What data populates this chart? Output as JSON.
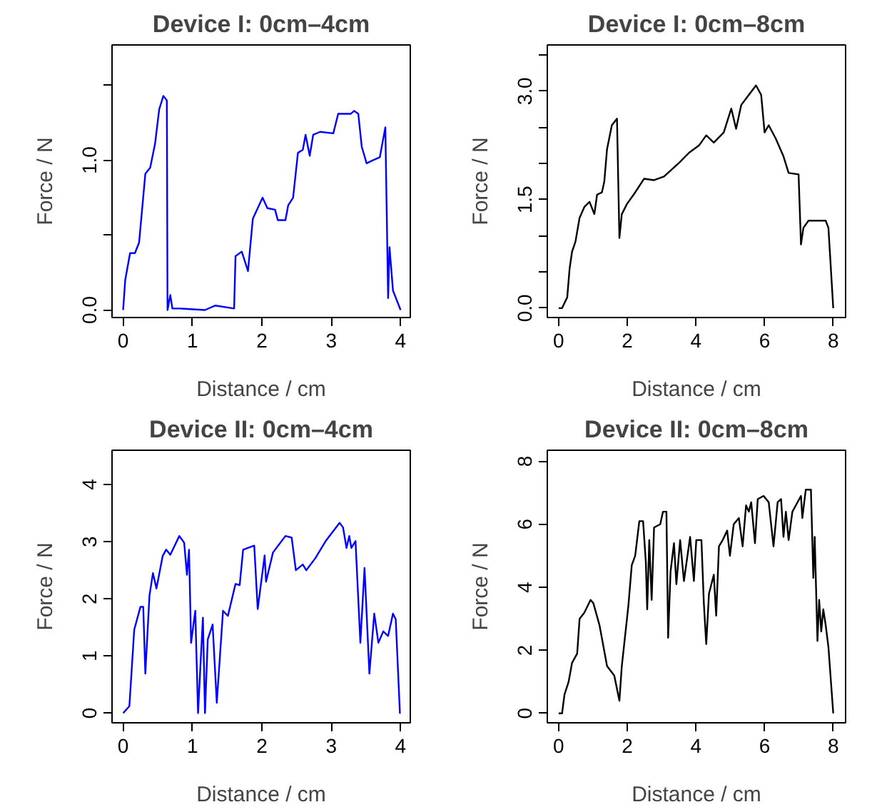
{
  "chart_data": [
    {
      "type": "line",
      "title": "Device I: 0cm–4cm",
      "xlabel": "Distance / cm",
      "ylabel": "Force / N",
      "grid": false,
      "xlim": [
        -0.16,
        4.14
      ],
      "ylim": [
        -0.05,
        1.77
      ],
      "xticks": [
        0,
        1,
        2,
        3,
        4
      ],
      "yticks": [
        {
          "value": 0,
          "label": "0.0"
        },
        {
          "value": 0.5,
          "label": null
        },
        {
          "value": 1,
          "label": "1.0"
        },
        {
          "value": 1.5,
          "label": null
        }
      ],
      "series": [
        {
          "color": "#0000ff",
          "x": [
            0,
            0.03,
            0.1,
            0.17,
            0.23,
            0.32,
            0.39,
            0.46,
            0.52,
            0.58,
            0.63,
            0.64,
            0.68,
            0.71,
            0.82,
            1.18,
            1.33,
            1.6,
            1.62,
            1.71,
            1.8,
            1.87,
            2.01,
            2.08,
            2.19,
            2.23,
            2.34,
            2.38,
            2.45,
            2.52,
            2.59,
            2.63,
            2.69,
            2.74,
            2.84,
            3.03,
            3.1,
            3.28,
            3.33,
            3.39,
            3.44,
            3.51,
            3.6,
            3.7,
            3.78,
            3.82,
            3.84,
            3.89,
            4.0
          ],
          "values": [
            0,
            0.2,
            0.38,
            0.38,
            0.45,
            0.91,
            0.95,
            1.11,
            1.34,
            1.43,
            1.4,
            0,
            0.1,
            0.01,
            0.01,
            0,
            0.03,
            0.01,
            0.36,
            0.39,
            0.26,
            0.61,
            0.75,
            0.68,
            0.67,
            0.6,
            0.6,
            0.7,
            0.75,
            1.05,
            1.07,
            1.17,
            1.03,
            1.17,
            1.19,
            1.18,
            1.31,
            1.31,
            1.33,
            1.31,
            1.09,
            0.98,
            1.0,
            1.02,
            1.22,
            0.08,
            0.42,
            0.13,
            0
          ]
        }
      ]
    },
    {
      "type": "line",
      "title": "Device I: 0cm–8cm",
      "xlabel": "Distance / cm",
      "ylabel": "Force / N",
      "grid": false,
      "xlim": [
        -0.33,
        8.36
      ],
      "ylim": [
        -0.13,
        3.64
      ],
      "xticks": [
        0,
        2,
        4,
        6,
        8
      ],
      "yticks": [
        {
          "value": 0,
          "label": "0.0"
        },
        {
          "value": 0.5,
          "label": null
        },
        {
          "value": 1,
          "label": null
        },
        {
          "value": 1.5,
          "label": "1.5"
        },
        {
          "value": 2,
          "label": null
        },
        {
          "value": 2.5,
          "label": null
        },
        {
          "value": 3,
          "label": "3.0"
        },
        {
          "value": 3.5,
          "label": null
        }
      ],
      "series": [
        {
          "color": "#000000",
          "x": [
            0,
            0.1,
            0.25,
            0.32,
            0.39,
            0.49,
            0.61,
            0.75,
            0.9,
            1.04,
            1.12,
            1.26,
            1.33,
            1.41,
            1.55,
            1.7,
            1.77,
            1.84,
            1.99,
            2.2,
            2.49,
            2.78,
            3.07,
            3.51,
            3.8,
            4.09,
            4.3,
            4.52,
            4.81,
            5.03,
            5.17,
            5.32,
            5.54,
            5.75,
            5.9,
            6.0,
            6.12,
            6.33,
            6.55,
            6.7,
            6.99,
            7.06,
            7.13,
            7.28,
            7.49,
            7.78,
            7.86,
            8.0
          ],
          "values": [
            0,
            0,
            0.15,
            0.55,
            0.78,
            0.92,
            1.25,
            1.4,
            1.47,
            1.3,
            1.57,
            1.6,
            1.75,
            2.2,
            2.53,
            2.62,
            0.97,
            1.3,
            1.44,
            1.58,
            1.79,
            1.77,
            1.82,
            2.01,
            2.15,
            2.25,
            2.39,
            2.29,
            2.43,
            2.76,
            2.48,
            2.81,
            2.95,
            3.08,
            2.95,
            2.43,
            2.53,
            2.34,
            2.1,
            1.87,
            1.85,
            0.88,
            1.11,
            1.21,
            1.21,
            1.21,
            1.11,
            0
          ]
        }
      ]
    },
    {
      "type": "line",
      "title": "Device II: 0cm–4cm",
      "xlabel": "Distance / cm",
      "ylabel": "Force / N",
      "grid": false,
      "xlim": [
        -0.16,
        4.14
      ],
      "ylim": [
        -0.17,
        4.6
      ],
      "xticks": [
        0,
        1,
        2,
        3,
        4
      ],
      "yticks": [
        0,
        1,
        2,
        3,
        4
      ],
      "series": [
        {
          "color": "#0000ff",
          "x": [
            0,
            0.09,
            0.16,
            0.25,
            0.29,
            0.32,
            0.38,
            0.43,
            0.48,
            0.57,
            0.62,
            0.68,
            0.81,
            0.88,
            0.92,
            0.95,
            0.98,
            1.04,
            1.08,
            1.15,
            1.18,
            1.22,
            1.29,
            1.35,
            1.44,
            1.51,
            1.62,
            1.68,
            1.73,
            1.89,
            1.94,
            2.04,
            2.06,
            2.16,
            2.34,
            2.43,
            2.49,
            2.59,
            2.64,
            2.77,
            2.92,
            3.12,
            3.17,
            3.22,
            3.26,
            3.29,
            3.35,
            3.42,
            3.48,
            3.55,
            3.62,
            3.68,
            3.75,
            3.82,
            3.89,
            3.93,
            3.99,
            4.0
          ],
          "values": [
            0,
            0.12,
            1.46,
            1.86,
            1.86,
            0.69,
            2.06,
            2.45,
            2.18,
            2.75,
            2.86,
            2.77,
            3.1,
            2.98,
            2.42,
            2.86,
            1.23,
            1.79,
            0,
            1.67,
            0,
            1.29,
            1.55,
            0.18,
            1.79,
            1.7,
            2.26,
            2.24,
            2.86,
            2.93,
            1.82,
            2.76,
            2.3,
            2.81,
            3.1,
            3.07,
            2.5,
            2.6,
            2.5,
            2.71,
            3.01,
            3.33,
            3.25,
            2.89,
            3.1,
            2.89,
            3.01,
            1.23,
            2.54,
            0.69,
            1.74,
            1.23,
            1.43,
            1.35,
            1.74,
            1.64,
            0,
            0
          ]
        }
      ]
    },
    {
      "type": "line",
      "title": "Device II: 0cm–8cm",
      "xlabel": "Distance / cm",
      "ylabel": "Force / N",
      "grid": false,
      "xlim": [
        -0.33,
        8.36
      ],
      "ylim": [
        -0.3,
        8.35
      ],
      "xticks": [
        0,
        2,
        4,
        6,
        8
      ],
      "yticks": [
        0,
        2,
        4,
        6,
        8
      ],
      "series": [
        {
          "color": "#000000",
          "x": [
            0,
            0.1,
            0.17,
            0.29,
            0.39,
            0.54,
            0.61,
            0.75,
            0.93,
            1.01,
            1.19,
            1.41,
            1.62,
            1.77,
            1.84,
            2.03,
            2.13,
            2.23,
            2.35,
            2.46,
            2.54,
            2.58,
            2.64,
            2.71,
            2.78,
            2.96,
            3.04,
            3.14,
            3.19,
            3.26,
            3.36,
            3.43,
            3.54,
            3.65,
            3.83,
            3.94,
            4.01,
            4.16,
            4.23,
            4.3,
            4.38,
            4.52,
            4.59,
            4.67,
            4.78,
            4.91,
            4.99,
            5.1,
            5.25,
            5.36,
            5.46,
            5.54,
            5.61,
            5.72,
            5.8,
            5.97,
            6.12,
            6.26,
            6.38,
            6.48,
            6.55,
            6.62,
            6.7,
            6.81,
            7.06,
            7.1,
            7.2,
            7.35,
            7.42,
            7.46,
            7.54,
            7.59,
            7.65,
            7.71,
            7.78,
            7.86,
            8.0
          ],
          "values": [
            0,
            0,
            0.6,
            1.0,
            1.6,
            1.9,
            3.0,
            3.2,
            3.6,
            3.5,
            2.8,
            1.5,
            1.2,
            0.4,
            1.5,
            3.4,
            4.7,
            5.0,
            6.1,
            6.1,
            4.8,
            3.3,
            5.5,
            3.6,
            5.9,
            6.0,
            6.4,
            6.4,
            2.4,
            4.5,
            5.4,
            4.1,
            5.5,
            4.2,
            5.6,
            4.2,
            5.5,
            5.5,
            3.5,
            2.2,
            3.8,
            4.4,
            3.1,
            5.3,
            5.5,
            5.8,
            5.0,
            6.0,
            6.2,
            5.3,
            6.6,
            6.4,
            6.7,
            5.4,
            6.8,
            6.9,
            6.7,
            5.3,
            6.7,
            6.8,
            5.6,
            6.4,
            5.5,
            6.4,
            6.9,
            6.2,
            7.1,
            7.1,
            4.3,
            5.6,
            2.3,
            3.6,
            2.6,
            3.3,
            2.8,
            2.1,
            0
          ]
        }
      ]
    }
  ]
}
